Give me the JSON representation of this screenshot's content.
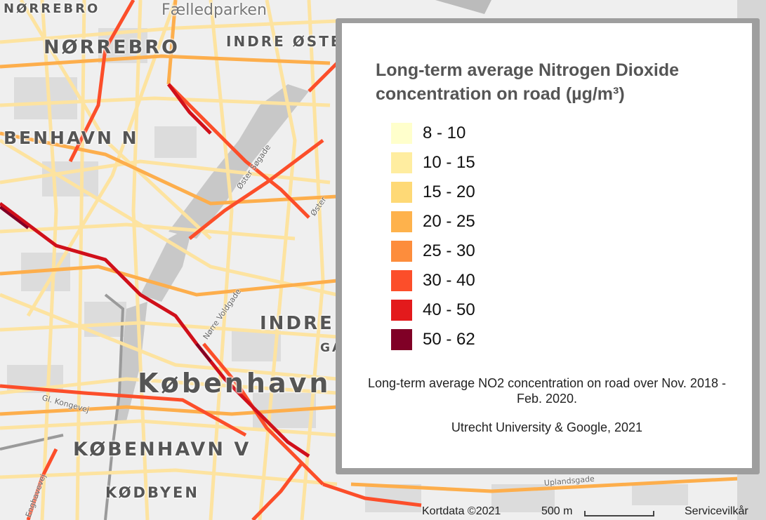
{
  "map": {
    "places": {
      "norrebro_top": "NØRREBRO",
      "faelledparken": "Fælledparken",
      "norrebro": "NØRREBRO",
      "indre_osterbro": "INDRE ØSTER",
      "kobenhavn_n": "BENHAVN N",
      "indre_by": "INDRE",
      "indre_by_fragment": "GA",
      "kobenhavn": "København",
      "kobenhavn_v": "KØBENHAVN V",
      "kodbyen": "KØDBYEN"
    },
    "streets": {
      "oster_sogade": "Øster Søgade",
      "oster": "Øster",
      "norre_voldgade": "Nørre Voldgade",
      "gl_kongevej": "Gl. Kongevej",
      "enghavevej": "Enghavevej",
      "uplandsgade": "Uplandsgade"
    }
  },
  "legend": {
    "title": "Long-term average Nitrogen Dioxide concentration on road (µg/m³)",
    "items": [
      {
        "label": "8 - 10",
        "color": "#ffffcc"
      },
      {
        "label": "10 - 15",
        "color": "#ffeda0"
      },
      {
        "label": "15 - 20",
        "color": "#fed976"
      },
      {
        "label": "20 - 25",
        "color": "#feb24c"
      },
      {
        "label": "25 - 30",
        "color": "#fd8d3c"
      },
      {
        "label": "30 - 40",
        "color": "#fc4e2a"
      },
      {
        "label": "40 - 50",
        "color": "#e31a1c"
      },
      {
        "label": "50 - 62",
        "color": "#800026"
      }
    ],
    "note": "Long-term average NO2 concentration on road over Nov. 2018 - Feb. 2020.",
    "credit": "Utrecht University & Google, 2021"
  },
  "footer": {
    "map_data": "Kortdata ©2021",
    "scale_label": "500 m",
    "terms": "Servicevilkår"
  }
}
